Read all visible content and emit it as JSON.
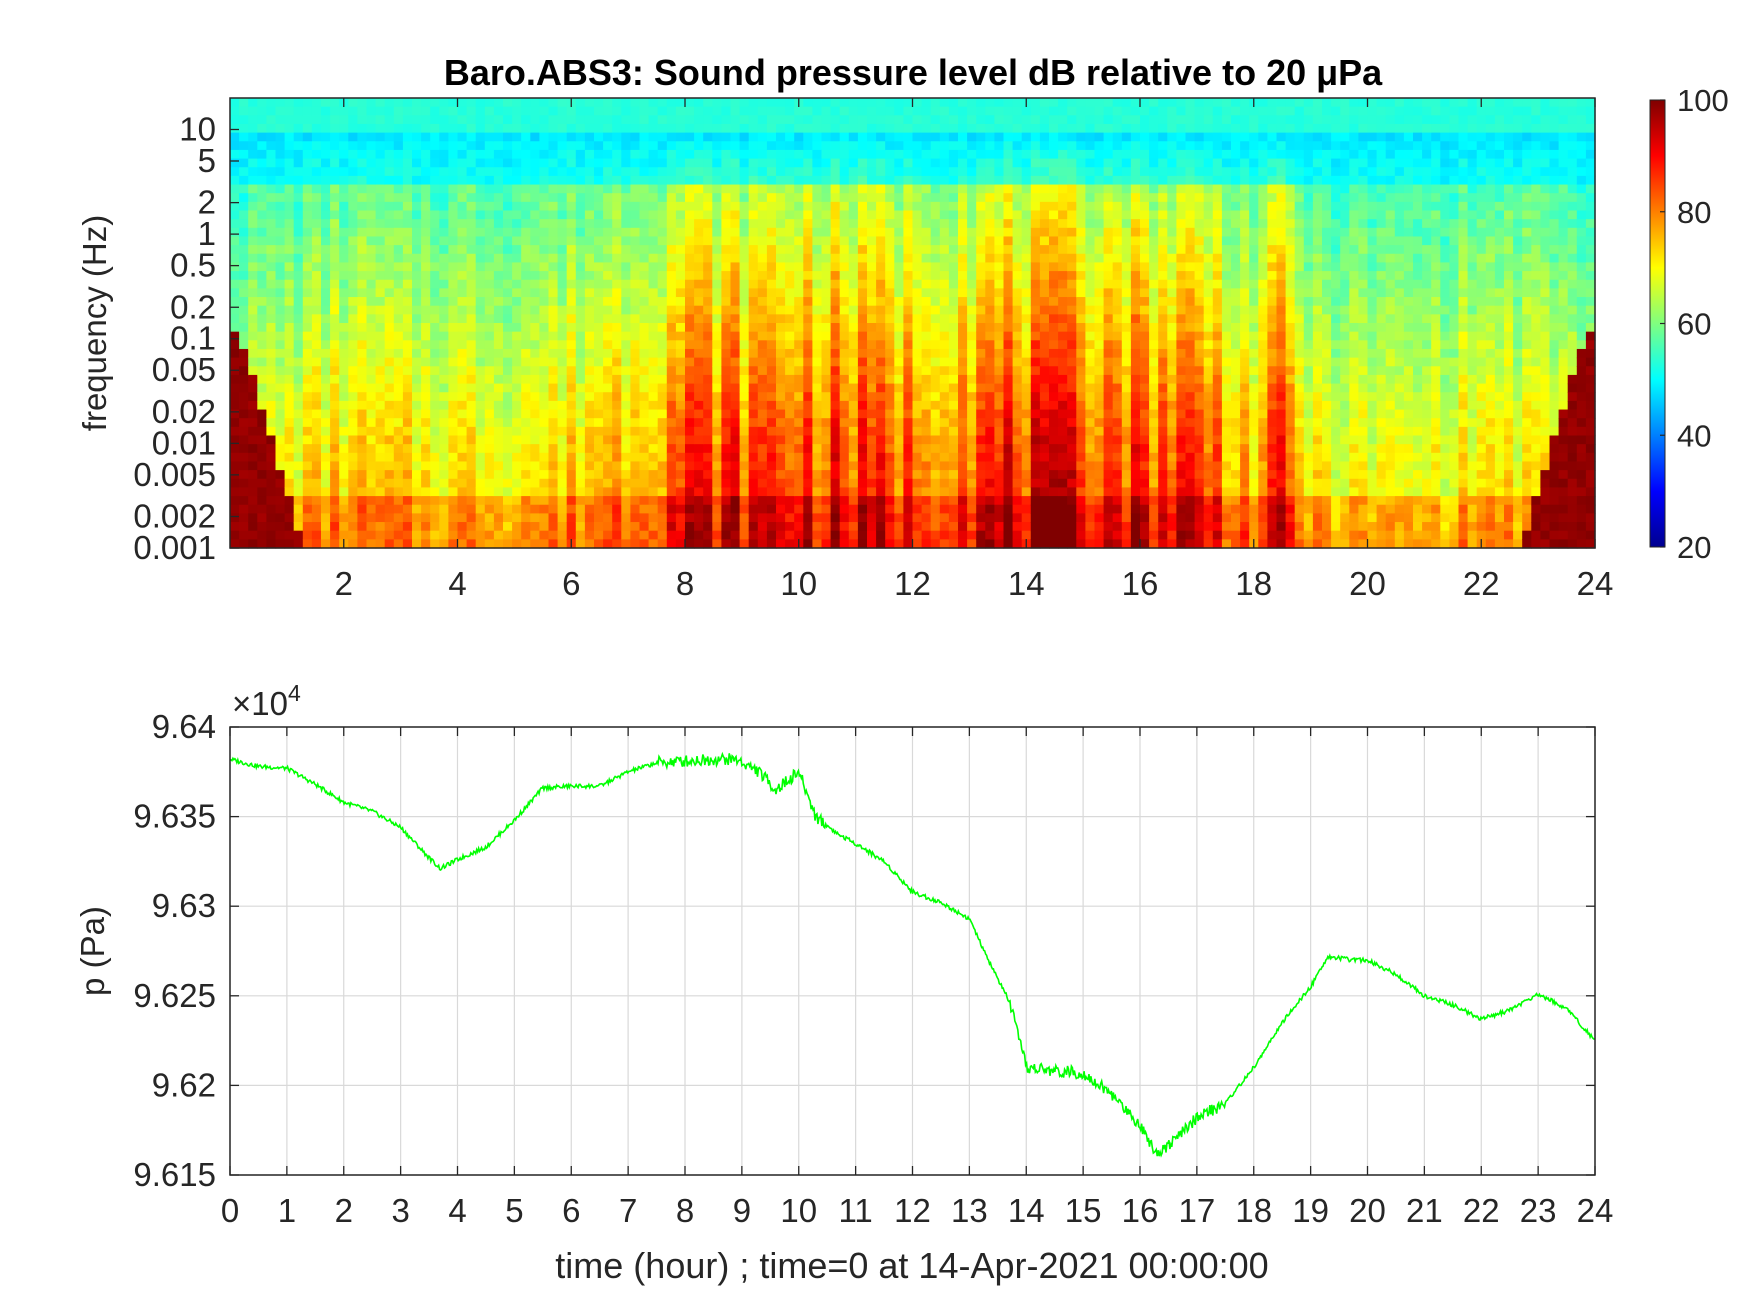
{
  "chart_data": [
    {
      "type": "heatmap",
      "title": "Baro.ABS3: Sound pressure level dB relative to 20 μPa",
      "xlabel": "",
      "ylabel": "frequency (Hz)",
      "xlim": [
        0,
        24
      ],
      "x_ticks": [
        "2",
        "4",
        "6",
        "8",
        "10",
        "12",
        "14",
        "16",
        "18",
        "20",
        "22",
        "24"
      ],
      "x_tick_values": [
        2,
        4,
        6,
        8,
        10,
        12,
        14,
        16,
        18,
        20,
        22,
        24
      ],
      "y_scale": "log",
      "ylim": [
        0.001,
        20
      ],
      "y_ticks": [
        "10",
        "5",
        "2",
        "1",
        "0.5",
        "0.2",
        "0.1",
        "0.05",
        "0.02",
        "0.01",
        "0.005",
        "0.002",
        "0.001"
      ],
      "y_tick_values": [
        10,
        5,
        2,
        1,
        0.5,
        0.2,
        0.1,
        0.05,
        0.02,
        0.01,
        0.005,
        0.002,
        0.001
      ],
      "colorbar": {
        "range": [
          20,
          100
        ],
        "ticks": [
          "100",
          "80",
          "60",
          "40",
          "20"
        ],
        "tick_values": [
          100,
          80,
          60,
          40,
          20
        ],
        "colormap": "jet"
      },
      "intensity_profile": {
        "x": [
          0,
          1,
          2,
          3,
          4,
          5,
          6,
          7,
          8,
          9,
          10,
          11,
          12,
          13,
          14,
          15,
          16,
          17,
          18,
          18.5,
          19,
          20,
          21,
          22,
          23,
          24
        ],
        "level": [
          0.35,
          0.45,
          0.55,
          0.5,
          0.5,
          0.5,
          0.55,
          0.7,
          0.95,
          0.9,
          0.95,
          0.9,
          0.85,
          0.95,
          1.0,
          1.0,
          0.95,
          0.95,
          0.6,
          0.9,
          0.45,
          0.4,
          0.4,
          0.5,
          0.45,
          0.35
        ]
      },
      "grid": false,
      "legend": "none"
    },
    {
      "type": "line",
      "title": "",
      "xlabel": "time (hour) ; time=0 at 14-Apr-2021 00:00:00",
      "ylabel": "p (Pa)",
      "xlim": [
        0,
        24
      ],
      "ylim": [
        9.615,
        9.64
      ],
      "y_multiplier": "×10",
      "y_multiplier_exp": "4",
      "x_ticks": [
        "0",
        "1",
        "2",
        "3",
        "4",
        "5",
        "6",
        "7",
        "8",
        "9",
        "10",
        "11",
        "12",
        "13",
        "14",
        "15",
        "16",
        "17",
        "18",
        "19",
        "20",
        "21",
        "22",
        "23",
        "24"
      ],
      "x_tick_values": [
        0,
        1,
        2,
        3,
        4,
        5,
        6,
        7,
        8,
        9,
        10,
        11,
        12,
        13,
        14,
        15,
        16,
        17,
        18,
        19,
        20,
        21,
        22,
        23,
        24
      ],
      "y_ticks": [
        "9.64",
        "9.635",
        "9.63",
        "9.625",
        "9.62",
        "9.615"
      ],
      "y_tick_values": [
        9.64,
        9.635,
        9.63,
        9.625,
        9.62,
        9.615
      ],
      "grid": true,
      "legend": "none",
      "series": [
        {
          "color": "#00ff00",
          "x": [
            0,
            0.5,
            1,
            1.5,
            2,
            2.5,
            3,
            3.5,
            3.7,
            4,
            4.5,
            5,
            5.5,
            6,
            6.5,
            7,
            7.5,
            8,
            8.5,
            8.9,
            9.3,
            9.6,
            10,
            10.3,
            10.7,
            11,
            11.5,
            12,
            12.5,
            13,
            13.3,
            13.7,
            14,
            14.5,
            15,
            15.5,
            16,
            16.3,
            16.7,
            17,
            17.5,
            18,
            18.5,
            19,
            19.3,
            19.7,
            20,
            20.5,
            21,
            21.5,
            22,
            22.5,
            23,
            23.5,
            24
          ],
          "y": [
            9.6382,
            9.6378,
            9.6377,
            9.6368,
            9.6358,
            9.6353,
            9.6344,
            9.6327,
            9.6321,
            9.6326,
            9.6333,
            9.6348,
            9.6366,
            9.6367,
            9.6367,
            9.6375,
            9.638,
            9.6381,
            9.6382,
            9.6382,
            9.6375,
            9.6365,
            9.6375,
            9.635,
            9.634,
            9.6335,
            9.6325,
            9.6308,
            9.6302,
            9.6293,
            9.6272,
            9.6247,
            9.621,
            9.6208,
            9.6207,
            9.6195,
            9.6178,
            9.6162,
            9.6172,
            9.6182,
            9.619,
            9.621,
            9.6235,
            9.6255,
            9.6272,
            9.627,
            9.627,
            9.6262,
            9.625,
            9.6245,
            9.6237,
            9.6242,
            9.6251,
            9.6243,
            9.6225
          ]
        }
      ]
    }
  ]
}
